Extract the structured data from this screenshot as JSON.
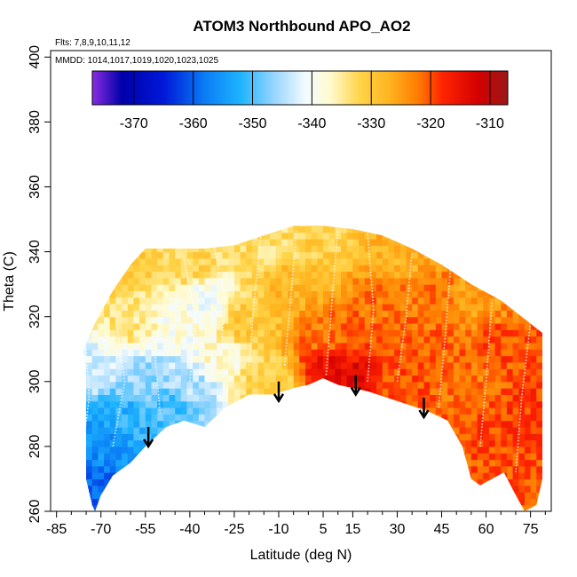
{
  "chart_data": {
    "type": "heatmap",
    "title": "ATOM3 Northbound APO_AO2",
    "flights_note": "Flts: 7,8,9,10,11,12",
    "dates_note": "MMDD: 1014,1017,1019,1020,1023,1025",
    "xlabel": "Latitude (deg N)",
    "ylabel": "Theta (C)",
    "xlim": [
      -87,
      82
    ],
    "ylim": [
      260,
      402
    ],
    "xticks": [
      -85,
      -70,
      -55,
      -40,
      -25,
      -10,
      5,
      15,
      30,
      45,
      60,
      75
    ],
    "xtick_labels": [
      "-85",
      "-70",
      "-55",
      "-40",
      "-25",
      "-10",
      "5",
      "15",
      "30",
      "45",
      "60",
      "75"
    ],
    "yticks": [
      260,
      280,
      300,
      320,
      340,
      360,
      380,
      400
    ],
    "ytick_labels": [
      "260",
      "280",
      "300",
      "320",
      "340",
      "360",
      "380",
      "400"
    ],
    "colorbar": {
      "min": -377,
      "max": -307,
      "ticks": [
        -370,
        -360,
        -350,
        -340,
        -330,
        -320,
        -310
      ],
      "tick_labels": [
        "-370",
        "-360",
        "-350",
        "-340",
        "-330",
        "-320",
        "-310"
      ],
      "colors": [
        {
          "v": -377,
          "c": "#8a2be2"
        },
        {
          "v": -372,
          "c": "#0000a8"
        },
        {
          "v": -365,
          "c": "#0018d8"
        },
        {
          "v": -358,
          "c": "#0a7df5"
        },
        {
          "v": -352,
          "c": "#1eb4ff"
        },
        {
          "v": -346,
          "c": "#9ed8ff"
        },
        {
          "v": -341,
          "c": "#f4fbff"
        },
        {
          "v": -337,
          "c": "#fffbd0"
        },
        {
          "v": -332,
          "c": "#ffd54a"
        },
        {
          "v": -327,
          "c": "#ffb520"
        },
        {
          "v": -322,
          "c": "#ff7a00"
        },
        {
          "v": -318,
          "c": "#ff2400"
        },
        {
          "v": -312,
          "c": "#d40000"
        },
        {
          "v": -307,
          "c": "#9a1818"
        }
      ]
    },
    "surface_boundary": [
      [
        -76,
        310
      ],
      [
        -75,
        305
      ],
      [
        -75,
        270
      ],
      [
        -73,
        262
      ],
      [
        -72,
        260
      ],
      [
        -70,
        265
      ],
      [
        -66,
        271
      ],
      [
        -60,
        275
      ],
      [
        -55,
        280
      ],
      [
        -48,
        286
      ],
      [
        -42,
        288
      ],
      [
        -35,
        286
      ],
      [
        -28,
        292
      ],
      [
        -20,
        296
      ],
      [
        -12,
        296
      ],
      [
        -5,
        298
      ],
      [
        0,
        299
      ],
      [
        5,
        301
      ],
      [
        10,
        299
      ],
      [
        20,
        297
      ],
      [
        30,
        294
      ],
      [
        40,
        291
      ],
      [
        47,
        288
      ],
      [
        52,
        280
      ],
      [
        55,
        270
      ],
      [
        58,
        268
      ],
      [
        62,
        270
      ],
      [
        66,
        272
      ],
      [
        70,
        265
      ],
      [
        73,
        260
      ],
      [
        77,
        262
      ],
      [
        79,
        270
      ],
      [
        79,
        315
      ]
    ],
    "top_boundary": [
      [
        -76,
        310
      ],
      [
        -72,
        318
      ],
      [
        -66,
        328
      ],
      [
        -60,
        336
      ],
      [
        -55,
        341
      ],
      [
        -45,
        341
      ],
      [
        -35,
        341
      ],
      [
        -25,
        342
      ],
      [
        -15,
        345
      ],
      [
        -5,
        348
      ],
      [
        5,
        348
      ],
      [
        15,
        347
      ],
      [
        25,
        345
      ],
      [
        35,
        341
      ],
      [
        45,
        336
      ],
      [
        55,
        330
      ],
      [
        65,
        325
      ],
      [
        72,
        320
      ],
      [
        79,
        315
      ]
    ],
    "value_field": [
      {
        "lat": -74,
        "theta": 266,
        "value": -360
      },
      {
        "lat": -70,
        "theta": 282,
        "value": -356
      },
      {
        "lat": -62,
        "theta": 290,
        "value": -352
      },
      {
        "lat": -55,
        "theta": 300,
        "value": -346
      },
      {
        "lat": -48,
        "theta": 292,
        "value": -350
      },
      {
        "lat": -40,
        "theta": 300,
        "value": -345
      },
      {
        "lat": -30,
        "theta": 306,
        "value": -338
      },
      {
        "lat": -70,
        "theta": 305,
        "value": -342
      },
      {
        "lat": -60,
        "theta": 318,
        "value": -334
      },
      {
        "lat": -45,
        "theta": 320,
        "value": -339
      },
      {
        "lat": -35,
        "theta": 325,
        "value": -340
      },
      {
        "lat": -60,
        "theta": 335,
        "value": -330
      },
      {
        "lat": -40,
        "theta": 336,
        "value": -332
      },
      {
        "lat": -20,
        "theta": 318,
        "value": -330
      },
      {
        "lat": -15,
        "theta": 300,
        "value": -332
      },
      {
        "lat": -5,
        "theta": 330,
        "value": -328
      },
      {
        "lat": -10,
        "theta": 342,
        "value": -333
      },
      {
        "lat": 5,
        "theta": 315,
        "value": -322
      },
      {
        "lat": 10,
        "theta": 305,
        "value": -315
      },
      {
        "lat": 15,
        "theta": 302,
        "value": -313
      },
      {
        "lat": 20,
        "theta": 312,
        "value": -320
      },
      {
        "lat": 25,
        "theta": 325,
        "value": -322
      },
      {
        "lat": 30,
        "theta": 300,
        "value": -320
      },
      {
        "lat": 40,
        "theta": 310,
        "value": -321
      },
      {
        "lat": 45,
        "theta": 325,
        "value": -322
      },
      {
        "lat": 55,
        "theta": 300,
        "value": -322
      },
      {
        "lat": 65,
        "theta": 310,
        "value": -320
      },
      {
        "lat": 72,
        "theta": 290,
        "value": -319
      },
      {
        "lat": 5,
        "theta": 342,
        "value": -331
      },
      {
        "lat": 30,
        "theta": 338,
        "value": -327
      },
      {
        "lat": 55,
        "theta": 325,
        "value": -325
      }
    ],
    "arrows": [
      {
        "lat": -54,
        "theta": 286
      },
      {
        "lat": -10,
        "theta": 300
      },
      {
        "lat": 16,
        "theta": 302
      },
      {
        "lat": 39,
        "theta": 295
      }
    ],
    "flight_tracks": [
      [
        [
          -76,
          280
        ],
        [
          -74,
          295
        ],
        [
          -75,
          310
        ]
      ],
      [
        [
          -66,
          280
        ],
        [
          -62,
          300
        ],
        [
          -65,
          320
        ]
      ],
      [
        [
          -50,
          290
        ],
        [
          -52,
          310
        ],
        [
          -48,
          325
        ]
      ],
      [
        [
          -40,
          300
        ],
        [
          -38,
          320
        ],
        [
          -42,
          338
        ]
      ],
      [
        [
          -30,
          305
        ],
        [
          -28,
          325
        ],
        [
          -32,
          342
        ]
      ],
      [
        [
          -20,
          305
        ],
        [
          -18,
          328
        ],
        [
          -16,
          345
        ]
      ],
      [
        [
          -8,
          305
        ],
        [
          -6,
          325
        ],
        [
          -4,
          347
        ]
      ],
      [
        [
          6,
          302
        ],
        [
          8,
          325
        ],
        [
          10,
          347
        ]
      ],
      [
        [
          20,
          300
        ],
        [
          22,
          322
        ],
        [
          20,
          346
        ]
      ],
      [
        [
          30,
          300
        ],
        [
          33,
          320
        ],
        [
          35,
          340
        ]
      ],
      [
        [
          44,
          292
        ],
        [
          46,
          312
        ],
        [
          48,
          335
        ]
      ],
      [
        [
          58,
          280
        ],
        [
          60,
          300
        ],
        [
          62,
          325
        ]
      ],
      [
        [
          70,
          272
        ],
        [
          72,
          295
        ],
        [
          75,
          318
        ]
      ]
    ]
  }
}
